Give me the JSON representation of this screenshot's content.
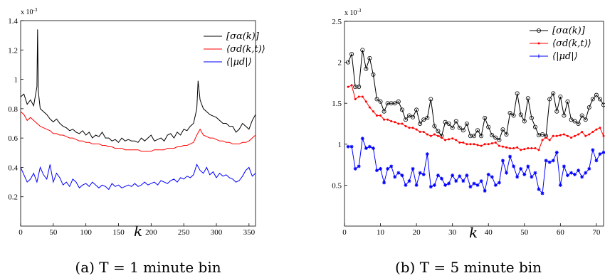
{
  "captions": [
    "(a) T = 1 minute bin",
    "(b) T = 5 minute bin"
  ],
  "chart_data": [
    {
      "type": "line",
      "xlabel": "k",
      "ylabel": "",
      "exponent_label": "x 10",
      "exponent_power": "-3",
      "xlim": [
        0,
        360
      ],
      "ylim": [
        0.0,
        1.4
      ],
      "xticks": [
        0,
        50,
        100,
        150,
        200,
        250,
        300,
        350
      ],
      "yticks": [
        0.2,
        0.4,
        0.6,
        0.8,
        1.0,
        1.2,
        1.4
      ],
      "ytick_labels": [
        "0.2",
        "0.4",
        "0.6",
        "0.8",
        "1",
        "1.2",
        "1.4"
      ],
      "legend_position": "top-right",
      "series": [
        {
          "name": "[σα(k)]",
          "color": "#000000",
          "marker": "none",
          "x": [
            0,
            5,
            10,
            15,
            20,
            25,
            26,
            27,
            30,
            35,
            40,
            45,
            50,
            55,
            60,
            65,
            70,
            75,
            80,
            85,
            90,
            95,
            100,
            105,
            110,
            115,
            120,
            125,
            130,
            135,
            140,
            145,
            150,
            155,
            160,
            165,
            170,
            175,
            180,
            185,
            190,
            195,
            200,
            205,
            210,
            215,
            220,
            225,
            230,
            235,
            240,
            245,
            250,
            255,
            260,
            265,
            270,
            272,
            275,
            280,
            285,
            290,
            295,
            300,
            305,
            310,
            315,
            320,
            325,
            330,
            335,
            340,
            345,
            350,
            355,
            360
          ],
          "y": [
            0.88,
            0.9,
            0.83,
            0.86,
            0.82,
            0.95,
            1.34,
            0.92,
            0.8,
            0.78,
            0.76,
            0.73,
            0.71,
            0.73,
            0.7,
            0.68,
            0.67,
            0.65,
            0.66,
            0.64,
            0.63,
            0.65,
            0.62,
            0.64,
            0.6,
            0.62,
            0.61,
            0.64,
            0.6,
            0.6,
            0.58,
            0.59,
            0.57,
            0.6,
            0.58,
            0.59,
            0.58,
            0.58,
            0.57,
            0.6,
            0.58,
            0.6,
            0.62,
            0.58,
            0.59,
            0.6,
            0.58,
            0.62,
            0.63,
            0.6,
            0.64,
            0.62,
            0.66,
            0.65,
            0.68,
            0.7,
            0.8,
            0.99,
            0.86,
            0.8,
            0.78,
            0.76,
            0.75,
            0.74,
            0.72,
            0.7,
            0.7,
            0.68,
            0.68,
            0.64,
            0.66,
            0.7,
            0.68,
            0.66,
            0.72,
            0.76
          ]
        },
        {
          "name": "⟨σd(k,t)⟩",
          "color": "#ff0000",
          "marker": "none",
          "x": [
            0,
            5,
            10,
            15,
            20,
            25,
            30,
            35,
            40,
            45,
            50,
            55,
            60,
            65,
            70,
            75,
            80,
            85,
            90,
            95,
            100,
            105,
            110,
            115,
            120,
            125,
            130,
            135,
            140,
            145,
            150,
            155,
            160,
            165,
            170,
            175,
            180,
            185,
            190,
            195,
            200,
            205,
            210,
            215,
            220,
            225,
            230,
            235,
            240,
            245,
            250,
            255,
            260,
            265,
            270,
            275,
            280,
            285,
            290,
            295,
            300,
            305,
            310,
            315,
            320,
            325,
            330,
            335,
            340,
            345,
            350,
            355,
            360
          ],
          "y": [
            0.78,
            0.76,
            0.72,
            0.74,
            0.72,
            0.7,
            0.68,
            0.67,
            0.66,
            0.65,
            0.63,
            0.63,
            0.62,
            0.62,
            0.61,
            0.6,
            0.6,
            0.59,
            0.58,
            0.58,
            0.57,
            0.57,
            0.56,
            0.56,
            0.56,
            0.55,
            0.55,
            0.54,
            0.54,
            0.53,
            0.53,
            0.53,
            0.52,
            0.52,
            0.52,
            0.52,
            0.52,
            0.51,
            0.51,
            0.51,
            0.51,
            0.52,
            0.52,
            0.52,
            0.52,
            0.53,
            0.53,
            0.53,
            0.54,
            0.54,
            0.55,
            0.55,
            0.56,
            0.57,
            0.62,
            0.66,
            0.62,
            0.61,
            0.6,
            0.6,
            0.59,
            0.58,
            0.58,
            0.57,
            0.57,
            0.56,
            0.56,
            0.56,
            0.57,
            0.57,
            0.58,
            0.6,
            0.62
          ]
        },
        {
          "name": "⟨|μd|⟩",
          "color": "#0000ff",
          "marker": "none",
          "x": [
            0,
            5,
            10,
            15,
            20,
            25,
            30,
            35,
            40,
            45,
            50,
            55,
            60,
            65,
            70,
            75,
            80,
            85,
            90,
            95,
            100,
            105,
            110,
            115,
            120,
            125,
            130,
            135,
            140,
            145,
            150,
            155,
            160,
            165,
            170,
            175,
            180,
            185,
            190,
            195,
            200,
            205,
            210,
            215,
            220,
            225,
            230,
            235,
            240,
            245,
            250,
            255,
            260,
            265,
            270,
            275,
            280,
            285,
            290,
            295,
            300,
            305,
            310,
            315,
            320,
            325,
            330,
            335,
            340,
            345,
            350,
            355,
            360
          ],
          "y": [
            0.4,
            0.35,
            0.3,
            0.32,
            0.36,
            0.3,
            0.4,
            0.35,
            0.32,
            0.42,
            0.3,
            0.36,
            0.33,
            0.28,
            0.3,
            0.27,
            0.32,
            0.3,
            0.26,
            0.28,
            0.29,
            0.27,
            0.3,
            0.28,
            0.26,
            0.28,
            0.27,
            0.25,
            0.29,
            0.27,
            0.28,
            0.26,
            0.27,
            0.28,
            0.27,
            0.29,
            0.27,
            0.28,
            0.3,
            0.28,
            0.29,
            0.3,
            0.28,
            0.31,
            0.3,
            0.29,
            0.31,
            0.32,
            0.3,
            0.33,
            0.32,
            0.34,
            0.33,
            0.35,
            0.42,
            0.38,
            0.36,
            0.4,
            0.35,
            0.37,
            0.33,
            0.36,
            0.34,
            0.35,
            0.33,
            0.32,
            0.3,
            0.31,
            0.34,
            0.38,
            0.4,
            0.34,
            0.36
          ]
        }
      ]
    },
    {
      "type": "line",
      "xlabel": "k",
      "ylabel": "",
      "exponent_label": "x 10",
      "exponent_power": "-3",
      "xlim": [
        0,
        72
      ],
      "ylim": [
        0.0,
        2.5
      ],
      "xticks": [
        0,
        10,
        20,
        30,
        40,
        50,
        60,
        70
      ],
      "yticks": [
        0.5,
        1.0,
        1.5,
        2.0,
        2.5
      ],
      "ytick_labels": [
        "0.5",
        "1",
        "1.5",
        "2",
        "2.5"
      ],
      "legend_position": "top-right",
      "series": [
        {
          "name": "[σα(k)]",
          "color": "#000000",
          "marker": "circle",
          "x": [
            1,
            2,
            3,
            4,
            5,
            6,
            7,
            8,
            9,
            10,
            11,
            12,
            13,
            14,
            15,
            16,
            17,
            18,
            19,
            20,
            21,
            22,
            23,
            24,
            25,
            26,
            27,
            28,
            29,
            30,
            31,
            32,
            33,
            34,
            35,
            36,
            37,
            38,
            39,
            40,
            41,
            42,
            43,
            44,
            45,
            46,
            47,
            48,
            49,
            50,
            51,
            52,
            53,
            54,
            55,
            56,
            57,
            58,
            59,
            60,
            61,
            62,
            63,
            64,
            65,
            66,
            67,
            68,
            69,
            70,
            71,
            72
          ],
          "y": [
            2.0,
            2.1,
            1.7,
            1.7,
            2.15,
            1.92,
            2.05,
            1.85,
            1.55,
            1.52,
            1.4,
            1.5,
            1.5,
            1.5,
            1.52,
            1.42,
            1.3,
            1.35,
            1.33,
            1.42,
            1.25,
            1.3,
            1.32,
            1.55,
            1.22,
            1.16,
            1.1,
            1.27,
            1.25,
            1.2,
            1.28,
            1.2,
            1.17,
            1.25,
            1.1,
            1.1,
            1.17,
            1.1,
            1.32,
            1.21,
            1.11,
            1.08,
            1.05,
            1.18,
            1.12,
            1.38,
            1.35,
            1.62,
            1.36,
            1.28,
            1.56,
            1.32,
            1.21,
            1.11,
            1.12,
            1.1,
            1.55,
            1.62,
            1.4,
            1.58,
            1.35,
            1.52,
            1.3,
            1.28,
            1.25,
            1.35,
            1.3,
            1.45,
            1.55,
            1.6,
            1.55,
            1.48
          ]
        },
        {
          "name": "⟨σd(k,t)⟩",
          "color": "#ff0000",
          "marker": "dot",
          "x": [
            1,
            2,
            3,
            4,
            5,
            6,
            7,
            8,
            9,
            10,
            11,
            12,
            13,
            14,
            15,
            16,
            17,
            18,
            19,
            20,
            21,
            22,
            23,
            24,
            25,
            26,
            27,
            28,
            29,
            30,
            31,
            32,
            33,
            34,
            35,
            36,
            37,
            38,
            39,
            40,
            41,
            42,
            43,
            44,
            45,
            46,
            47,
            48,
            49,
            50,
            51,
            52,
            53,
            54,
            55,
            56,
            57,
            58,
            59,
            60,
            61,
            62,
            63,
            64,
            65,
            66,
            67,
            68,
            69,
            70,
            71,
            72
          ],
          "y": [
            1.7,
            1.72,
            1.55,
            1.58,
            1.58,
            1.52,
            1.45,
            1.4,
            1.35,
            1.35,
            1.3,
            1.3,
            1.28,
            1.27,
            1.25,
            1.25,
            1.22,
            1.2,
            1.2,
            1.18,
            1.15,
            1.15,
            1.12,
            1.1,
            1.12,
            1.1,
            1.08,
            1.05,
            1.06,
            1.07,
            1.05,
            1.02,
            1.02,
            1.0,
            1.0,
            1.0,
            0.99,
            0.98,
            1.0,
            1.0,
            1.01,
            1.02,
            0.98,
            0.97,
            0.96,
            0.95,
            0.95,
            0.96,
            0.93,
            0.94,
            0.95,
            0.95,
            0.95,
            0.93,
            1.05,
            1.08,
            1.05,
            1.1,
            1.1,
            1.11,
            1.12,
            1.1,
            1.08,
            1.1,
            1.12,
            1.15,
            1.1,
            1.12,
            1.15,
            1.18,
            1.2,
            1.1
          ]
        },
        {
          "name": "⟨|μd|⟩",
          "color": "#0000ff",
          "marker": "star",
          "x": [
            1,
            2,
            3,
            4,
            5,
            6,
            7,
            8,
            9,
            10,
            11,
            12,
            13,
            14,
            15,
            16,
            17,
            18,
            19,
            20,
            21,
            22,
            23,
            24,
            25,
            26,
            27,
            28,
            29,
            30,
            31,
            32,
            33,
            34,
            35,
            36,
            37,
            38,
            39,
            40,
            41,
            42,
            43,
            44,
            45,
            46,
            47,
            48,
            49,
            50,
            51,
            52,
            53,
            54,
            55,
            56,
            57,
            58,
            59,
            60,
            61,
            62,
            63,
            64,
            65,
            66,
            67,
            68,
            69,
            70,
            71,
            72
          ],
          "y": [
            0.97,
            0.97,
            0.7,
            0.73,
            1.07,
            0.95,
            0.97,
            0.95,
            0.68,
            0.7,
            0.53,
            0.7,
            0.73,
            0.6,
            0.65,
            0.62,
            0.5,
            0.55,
            0.7,
            0.5,
            0.65,
            0.63,
            0.88,
            0.48,
            0.5,
            0.62,
            0.58,
            0.5,
            0.52,
            0.62,
            0.55,
            0.61,
            0.55,
            0.62,
            0.48,
            0.52,
            0.5,
            0.55,
            0.43,
            0.63,
            0.6,
            0.5,
            0.53,
            0.8,
            0.65,
            0.85,
            0.73,
            0.6,
            0.7,
            0.63,
            0.73,
            0.6,
            0.65,
            0.45,
            0.4,
            0.8,
            0.78,
            0.8,
            0.9,
            0.5,
            0.73,
            0.62,
            0.65,
            0.63,
            0.68,
            0.6,
            0.65,
            0.7,
            0.93,
            0.8,
            0.88,
            0.9
          ]
        }
      ]
    }
  ]
}
